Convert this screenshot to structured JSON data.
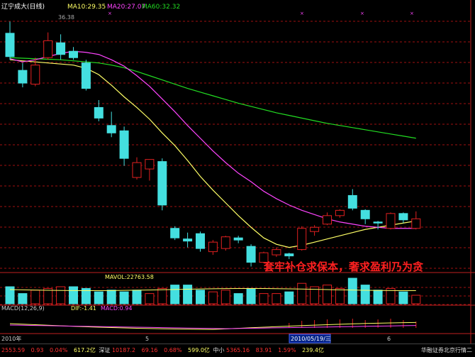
{
  "header": {
    "title": "辽宁成大(日线)",
    "ma10": "MA10:29.35",
    "ma20": "MA20:27.07",
    "ma60": "MA60:32.32",
    "price_marker": "36.38"
  },
  "annotation": "套牢补仓求保本，奢求盈利乃为贪",
  "volume_panel": {
    "label": "MAVOL:22763.58"
  },
  "macd_panel": {
    "params": "MACD(12,26,9)",
    "dif": "DIF:-1.41",
    "dea": "DEA:-1.41",
    "macd": "MACD:0.94"
  },
  "bottom_axis": {
    "year_label": "2010年",
    "month_5": "5",
    "date_box": "2010/05/19/三",
    "month_6": "6"
  },
  "status_bar": {
    "index1": "2553.59",
    "change1": "0.93",
    "pct1": "0.04%",
    "amount1": "617.2亿",
    "label2": "深证",
    "index2": "10187.2",
    "change2": "69.16",
    "pct2": "0.68%",
    "amount2": "599.0亿",
    "label3": "中小",
    "index3": "5365.16",
    "change3": "83.91",
    "pct3": "1.59%",
    "amount3": "239.4亿",
    "broker": "华融证券北京行情二"
  },
  "colors": {
    "up": "#e02020",
    "down": "#44dfe0",
    "ma10": "#ffff66",
    "ma20": "#ff44ff",
    "ma60": "#22dd22",
    "grid": "#a01010",
    "annotation": "#ff2020"
  },
  "chart_data": {
    "type": "candlestick",
    "candles": [
      {
        "o": 36.3,
        "h": 37.4,
        "l": 33.8,
        "c": 34.1
      },
      {
        "o": 32.8,
        "h": 33.5,
        "l": 31.2,
        "c": 31.6
      },
      {
        "o": 31.5,
        "h": 34.0,
        "l": 31.3,
        "c": 33.3
      },
      {
        "o": 34.0,
        "h": 36.38,
        "l": 33.8,
        "c": 35.6
      },
      {
        "o": 35.4,
        "h": 36.2,
        "l": 33.8,
        "c": 34.3
      },
      {
        "o": 34.6,
        "h": 35.0,
        "l": 33.8,
        "c": 34.0
      },
      {
        "o": 33.5,
        "h": 33.8,
        "l": 30.9,
        "c": 31.1
      },
      {
        "o": 29.3,
        "h": 30.0,
        "l": 28.0,
        "c": 28.3
      },
      {
        "o": 27.6,
        "h": 28.9,
        "l": 26.5,
        "c": 26.9
      },
      {
        "o": 27.1,
        "h": 27.5,
        "l": 23.8,
        "c": 24.5
      },
      {
        "o": 22.7,
        "h": 24.6,
        "l": 22.5,
        "c": 24.1
      },
      {
        "o": 23.5,
        "h": 24.3,
        "l": 22.4,
        "c": 24.4
      },
      {
        "o": 24.2,
        "h": 24.5,
        "l": 19.6,
        "c": 20.1
      },
      {
        "o": 17.9,
        "h": 18.1,
        "l": 16.8,
        "c": 17.0
      },
      {
        "o": 16.9,
        "h": 17.5,
        "l": 16.1,
        "c": 16.7
      },
      {
        "o": 17.4,
        "h": 17.6,
        "l": 15.7,
        "c": 16.0
      },
      {
        "o": 15.7,
        "h": 16.8,
        "l": 15.4,
        "c": 16.6
      },
      {
        "o": 16.0,
        "h": 17.2,
        "l": 15.8,
        "c": 17.1
      },
      {
        "o": 17.0,
        "h": 17.2,
        "l": 16.5,
        "c": 16.8
      },
      {
        "o": 16.2,
        "h": 16.4,
        "l": 14.3,
        "c": 14.7
      },
      {
        "o": 14.7,
        "h": 15.7,
        "l": 14.6,
        "c": 15.6
      },
      {
        "o": 15.4,
        "h": 16.1,
        "l": 15.2,
        "c": 15.9
      },
      {
        "o": 15.5,
        "h": 15.6,
        "l": 15.0,
        "c": 15.3
      },
      {
        "o": 15.9,
        "h": 18.1,
        "l": 15.8,
        "c": 17.9
      },
      {
        "o": 17.6,
        "h": 18.2,
        "l": 17.2,
        "c": 18.0
      },
      {
        "o": 18.3,
        "h": 19.4,
        "l": 18.2,
        "c": 19.1
      },
      {
        "o": 19.1,
        "h": 19.7,
        "l": 18.9,
        "c": 19.6
      },
      {
        "o": 21.0,
        "h": 21.6,
        "l": 19.6,
        "c": 19.8
      },
      {
        "o": 19.6,
        "h": 19.7,
        "l": 18.3,
        "c": 18.8
      },
      {
        "o": 18.5,
        "h": 18.6,
        "l": 17.8,
        "c": 18.4
      },
      {
        "o": 17.9,
        "h": 19.4,
        "l": 17.8,
        "c": 19.3
      },
      {
        "o": 19.3,
        "h": 19.4,
        "l": 18.4,
        "c": 18.7
      },
      {
        "o": 17.9,
        "h": 19.5,
        "l": 17.8,
        "c": 18.8
      }
    ],
    "ma10": [
      33.8,
      33.7,
      33.6,
      33.5,
      33.4,
      33.3,
      33.0,
      32.4,
      31.4,
      30.3,
      29.3,
      28.2,
      26.9,
      25.7,
      24.3,
      22.8,
      21.5,
      20.3,
      19.1,
      18.0,
      17.0,
      16.4,
      16.1,
      16.3,
      16.6,
      16.9,
      17.2,
      17.5,
      17.8,
      18.0,
      18.2,
      18.4,
      18.6
    ],
    "ma20": [
      33.9,
      33.6,
      33.8,
      34.1,
      34.4,
      34.6,
      34.5,
      34.3,
      33.8,
      33.2,
      32.3,
      31.3,
      30.1,
      28.9,
      27.6,
      26.4,
      25.2,
      24.1,
      23.1,
      22.3,
      21.4,
      20.7,
      20.1,
      19.6,
      19.2,
      18.8,
      18.5,
      18.3,
      18.1,
      18.0,
      17.9,
      17.9,
      17.9
    ],
    "ma60": [
      34.0,
      33.95,
      33.9,
      33.85,
      33.8,
      33.7,
      33.6,
      33.5,
      33.3,
      33.05,
      32.7,
      32.3,
      31.9,
      31.5,
      31.1,
      30.75,
      30.4,
      30.05,
      29.7,
      29.4,
      29.1,
      28.8,
      28.55,
      28.3,
      28.05,
      27.8,
      27.6,
      27.4,
      27.2,
      27.0,
      26.8,
      26.6,
      26.4
    ],
    "volume": [
      {
        "v": 1.0,
        "up": false
      },
      {
        "v": 0.6,
        "up": false
      },
      {
        "v": 0.8,
        "up": true
      },
      {
        "v": 0.9,
        "up": true
      },
      {
        "v": 1.0,
        "up": true
      },
      {
        "v": 1.0,
        "up": false
      },
      {
        "v": 0.9,
        "up": false
      },
      {
        "v": 0.7,
        "up": false
      },
      {
        "v": 0.8,
        "up": false
      },
      {
        "v": 0.7,
        "up": false
      },
      {
        "v": 0.8,
        "up": false
      },
      {
        "v": 0.6,
        "up": true
      },
      {
        "v": 0.9,
        "up": true
      },
      {
        "v": 1.1,
        "up": false
      },
      {
        "v": 1.1,
        "up": false
      },
      {
        "v": 0.8,
        "up": false
      },
      {
        "v": 0.7,
        "up": true
      },
      {
        "v": 0.8,
        "up": true
      },
      {
        "v": 0.6,
        "up": false
      },
      {
        "v": 0.9,
        "up": false
      },
      {
        "v": 0.6,
        "up": true
      },
      {
        "v": 0.6,
        "up": true
      },
      {
        "v": 0.7,
        "up": false
      },
      {
        "v": 1.2,
        "up": true
      },
      {
        "v": 1.0,
        "up": true
      },
      {
        "v": 1.1,
        "up": true
      },
      {
        "v": 0.9,
        "up": true
      },
      {
        "v": 1.5,
        "up": false
      },
      {
        "v": 1.1,
        "up": false
      },
      {
        "v": 0.8,
        "up": false
      },
      {
        "v": 0.9,
        "up": true
      },
      {
        "v": 0.7,
        "up": false
      },
      {
        "v": 0.5,
        "up": true
      }
    ],
    "macd_bars": [
      0.0,
      0.0,
      0.0,
      0.0,
      0.0,
      0.0,
      0.0,
      0.0,
      0.0,
      0.0,
      0.0,
      0.0,
      0.0,
      0.0,
      0.0,
      0.0,
      0.0,
      0.0,
      0.0,
      0.0,
      0.0,
      0.0,
      0.35,
      0.5,
      0.55,
      0.6,
      0.6,
      0.65,
      0.55,
      0.6,
      0.65,
      0.55,
      0.45
    ]
  }
}
